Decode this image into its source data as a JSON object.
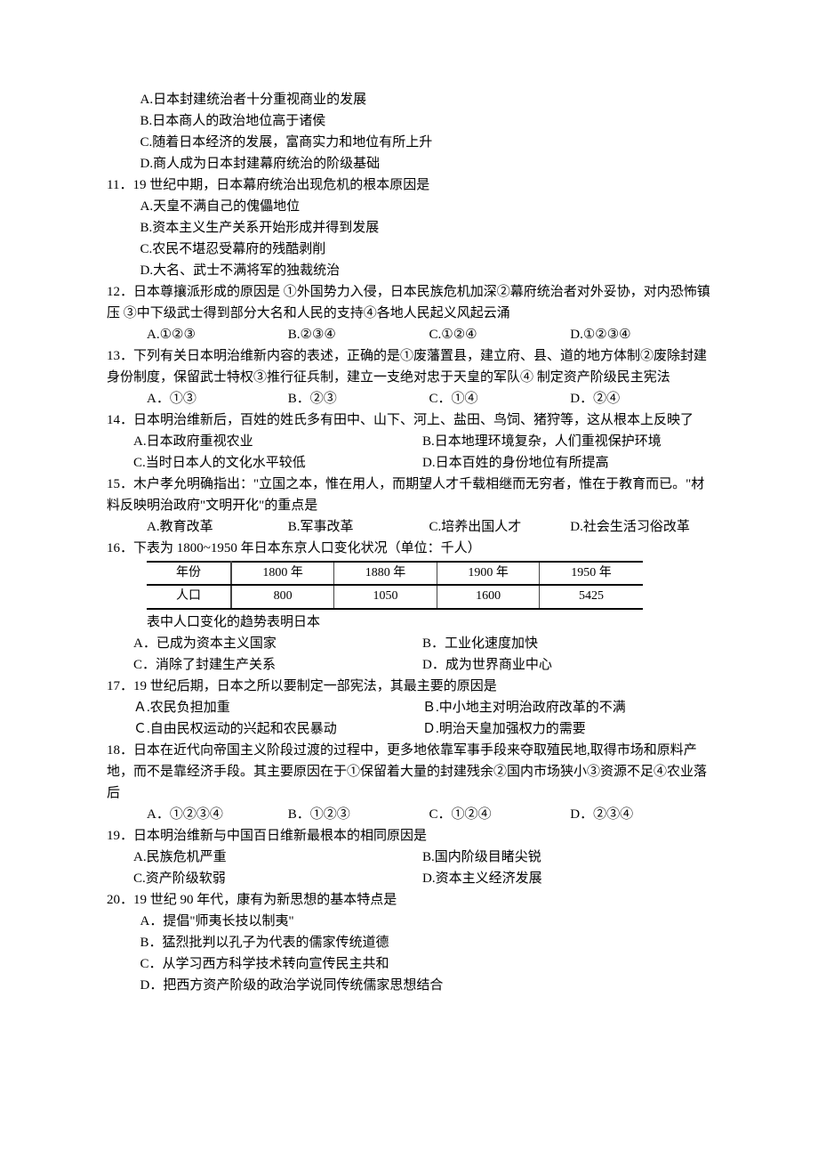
{
  "q10_continued": {
    "optA": "A.日本封建统治者十分重视商业的发展",
    "optB": "B.日本商人的政治地位高于诸侯",
    "optC": "C.随着日本经济的发展，富商实力和地位有所上升",
    "optD": "D.商人成为日本封建幕府统治的阶级基础"
  },
  "q11": {
    "stem": "11．19 世纪中期，日本幕府统治出现危机的根本原因是",
    "optA": "A.天皇不满自己的傀儡地位",
    "optB": "B.资本主义生产关系开始形成并得到发展",
    "optC": "C.农民不堪忍受幕府的残酷剥削",
    "optD": "D.大名、武士不满将军的独裁统治"
  },
  "q12": {
    "stem": "12．日本尊攘派形成的原因是 ①外国势力入侵，日本民族危机加深②幕府统治者对外妥协，对内恐怖镇压 ③中下级武士得到部分大名和人民的支持④各地人民起义风起云涌",
    "optA": "A.①②③",
    "optB": "B.②③④",
    "optC": "C.①②④",
    "optD": "D.①②③④"
  },
  "q13": {
    "stem": "13．下列有关日本明治维新内容的表述，正确的是①废藩置县，建立府、县、道的地方体制②废除封建身份制度，保留武士特权③推行征兵制，建立一支绝对忠于天皇的军队④ 制定资产阶级民主宪法",
    "optA": "A．①③",
    "optB": "B．②③",
    "optC": "C．①④",
    "optD": "D．②④"
  },
  "q14": {
    "stem": "14．日本明治维新后，百姓的姓氏多有田中、山下、河上、盐田、鸟饲、猪狩等，这从根本上反映了",
    "optA": "A.日本政府重视农业",
    "optB": "B.日本地理环境复杂，人们重视保护环境",
    "optC": "C.当时日本人的文化水平较低",
    "optD": "D.日本百姓的身份地位有所提高"
  },
  "q15": {
    "stem": "15．木户孝允明确指出：\"立国之本，惟在用人，而期望人才千载相继而无穷者，惟在于教育而已。\"材料反映明治政府\"文明开化\"的重点是",
    "optA": "A.教育改革",
    "optB": "B.军事改革",
    "optC": "C.培养出国人才",
    "optD": "D.社会生活习俗改革"
  },
  "q16": {
    "stem": "16．下表为 1800~1950 年日本东京人口变化状况（单位：千人）",
    "table": {
      "header_year": "年份",
      "header_pop": "人口",
      "years": [
        "1800 年",
        "1880 年",
        "1900 年",
        "1950 年"
      ],
      "pops": [
        "800",
        "1050",
        "1600",
        "5425"
      ]
    },
    "note": "表中人口变化的趋势表明日本",
    "optA": "A．已成为资本主义国家",
    "optB": "B．工业化速度加快",
    "optC": "C．消除了封建生产关系",
    "optD": "D．成为世界商业中心"
  },
  "q17": {
    "stem": "17．19 世纪后期，日本之所以要制定一部宪法，其最主要的原因是",
    "optA": "Ａ.农民负担加重",
    "optB": "Ｂ.中小地主对明治政府改革的不满",
    "optC": "Ｃ.自由民权运动的兴起和农民暴动",
    "optD": "Ｄ.明治天皇加强权力的需要"
  },
  "q18": {
    "stem": "18．日本在近代向帝国主义阶段过渡的过程中，更多地依靠军事手段来夺取殖民地,取得市场和原料产地，而不是靠经济手段。其主要原因在于①保留着大量的封建残余②国内市场狭小③资源不足④农业落后",
    "optA": "A．①②③④",
    "optB": "B．①②③",
    "optC": "C．①②④",
    "optD": "D．②③④"
  },
  "q19": {
    "stem": "19．日本明治维新与中国百日维新最根本的相同原因是",
    "optA": "A.民族危机严重",
    "optB": "B.国内阶级目睹尖锐",
    "optC": "C.资产阶级软弱",
    "optD": "D.资本主义经济发展"
  },
  "q20": {
    "stem": "20．19 世纪 90 年代，康有为新思想的基本特点是",
    "optA": "A．提倡\"师夷长技以制夷\"",
    "optB": "B．猛烈批判以孔子为代表的儒家传统道德",
    "optC": "C．从学习西方科学技术转向宣传民主共和",
    "optD": "D．把西方资产阶级的政治学说同传统儒家思想结合"
  }
}
